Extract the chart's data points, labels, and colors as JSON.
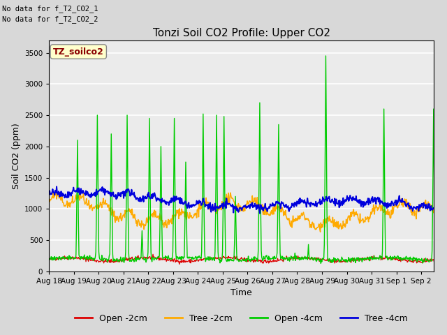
{
  "title": "Tonzi Soil CO2 Profile: Upper CO2",
  "xlabel": "Time",
  "ylabel": "Soil CO2 (ppm)",
  "ylim": [
    0,
    3700
  ],
  "yticks": [
    0,
    500,
    1000,
    1500,
    2000,
    2500,
    3000,
    3500
  ],
  "annotation_line1": "No data for f_T2_CO2_1",
  "annotation_line2": "No data for f_T2_CO2_2",
  "legend_label": "TZ_soilco2",
  "series_labels": [
    "Open -2cm",
    "Tree -2cm",
    "Open -4cm",
    "Tree -4cm"
  ],
  "series_colors": [
    "#dd0000",
    "#ffaa00",
    "#00cc00",
    "#0000dd"
  ],
  "background_color": "#d8d8d8",
  "plot_bg_color": "#ebebeb",
  "grid_color": "#ffffff",
  "n_days": 16,
  "seed": 42,
  "x_tick_labels": [
    "Aug 18",
    "Aug 19",
    "Aug 20",
    "Aug 21",
    "Aug 22",
    "Aug 23",
    "Aug 24",
    "Aug 25",
    "Aug 26",
    "Aug 27",
    "Aug 28",
    "Aug 29",
    "Aug 30",
    "Aug 31",
    "Sep 1",
    "Sep 2"
  ]
}
